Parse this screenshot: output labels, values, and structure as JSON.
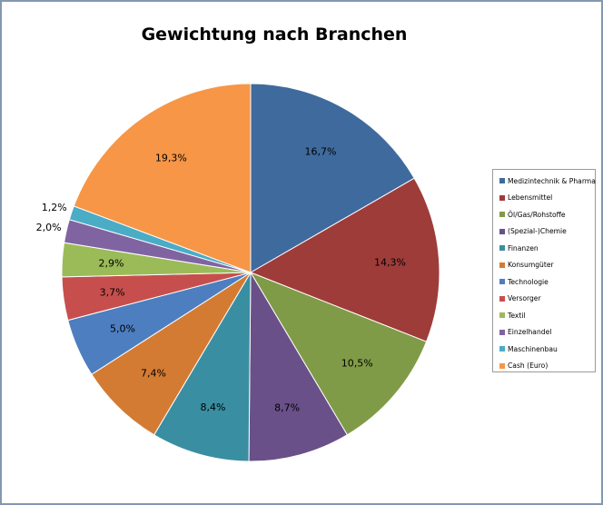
{
  "chart_data": {
    "type": "pie",
    "title": "Gewichtung nach Branchen",
    "legend_position": "right",
    "slices": [
      {
        "label": "Medizintechnik & Pharma",
        "value": 16.7,
        "value_label": "16,7%",
        "color": "#3f6a9d"
      },
      {
        "label": "Lebensmittel",
        "value": 14.3,
        "value_label": "14,3%",
        "color": "#9e3c3a"
      },
      {
        "label": "Öl/Gas/Rohstoffe",
        "value": 10.5,
        "value_label": "10,5%",
        "color": "#809b47"
      },
      {
        "label": "(Spezial-)Chemie",
        "value": 8.7,
        "value_label": "8,7%",
        "color": "#6a5088"
      },
      {
        "label": "Finanzen",
        "value": 8.4,
        "value_label": "8,4%",
        "color": "#3a8ea1"
      },
      {
        "label": "Konsumgüter",
        "value": 7.4,
        "value_label": "7,4%",
        "color": "#d47b33"
      },
      {
        "label": "Technologie",
        "value": 5.0,
        "value_label": "5,0%",
        "color": "#4d7ec0"
      },
      {
        "label": "Versorger",
        "value": 3.7,
        "value_label": "3,7%",
        "color": "#c64f4d"
      },
      {
        "label": "Textil",
        "value": 2.9,
        "value_label": "2,9%",
        "color": "#9bbb59"
      },
      {
        "label": "Einzelhandel",
        "value": 2.0,
        "value_label": "2,0%",
        "color": "#8064a2"
      },
      {
        "label": "Maschinenbau",
        "value": 1.2,
        "value_label": "1,2%",
        "color": "#4bacc6"
      },
      {
        "label": "Cash (Euro)",
        "value": 19.3,
        "value_label": "19,3%",
        "color": "#f79646"
      }
    ]
  }
}
